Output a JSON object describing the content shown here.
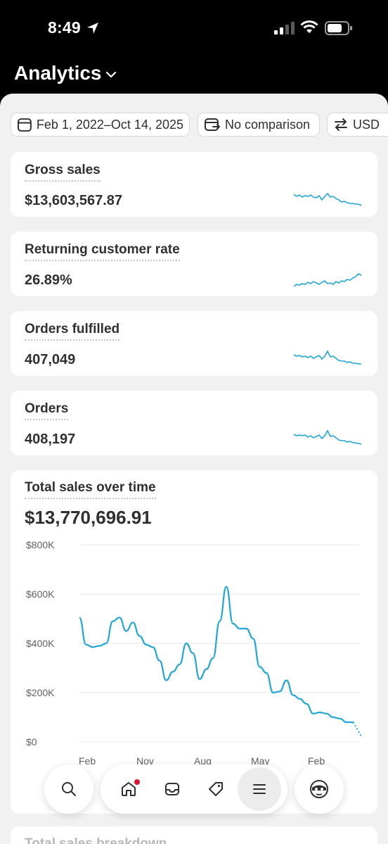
{
  "status": {
    "time": "8:49"
  },
  "header": {
    "title": "Analytics"
  },
  "filters": {
    "date_range": "Feb 1, 2022–Oct 14, 2025",
    "comparison": "No comparison",
    "currency": "USD"
  },
  "metrics": [
    {
      "label": "Gross sales",
      "value": "$13,603,567.87"
    },
    {
      "label": "Returning customer rate",
      "value": "26.89%"
    },
    {
      "label": "Orders fulfilled",
      "value": "407,049"
    },
    {
      "label": "Orders",
      "value": "408,197"
    }
  ],
  "total_sales": {
    "label": "Total sales over time",
    "value": "$13,770,696.91"
  },
  "chart_data": {
    "type": "line",
    "title": "Total sales over time",
    "ylim": [
      0,
      800000
    ],
    "y_ticks": [
      "$800K",
      "$600K",
      "$400K",
      "$200K",
      "$0"
    ],
    "x_ticks": [
      "Feb",
      "Nov",
      "Aug",
      "May",
      "Feb"
    ],
    "grid": true,
    "color": "#20a7d8",
    "series": [
      {
        "values": [
          505000,
          395000,
          385000,
          390000,
          400000,
          490000,
          505000,
          450000,
          485000,
          430000,
          395000,
          385000,
          330000,
          250000,
          285000,
          315000,
          400000,
          360000,
          255000,
          295000,
          340000,
          490000,
          630000,
          480000,
          460000,
          460000,
          420000,
          305000,
          280000,
          200000,
          205000,
          250000,
          190000,
          175000,
          155000,
          115000,
          120000,
          115000,
          100000,
          95000,
          80000,
          80000,
          78000
        ]
      }
    ]
  },
  "breakdown": {
    "label": "Total sales breakdown"
  },
  "colors": {
    "accent": "#20a7d8",
    "badge": "#e0142c"
  },
  "nav": {
    "items": [
      "search-icon",
      "home-icon",
      "inbox-icon",
      "tag-icon",
      "menu-icon",
      "avatar-icon"
    ]
  }
}
